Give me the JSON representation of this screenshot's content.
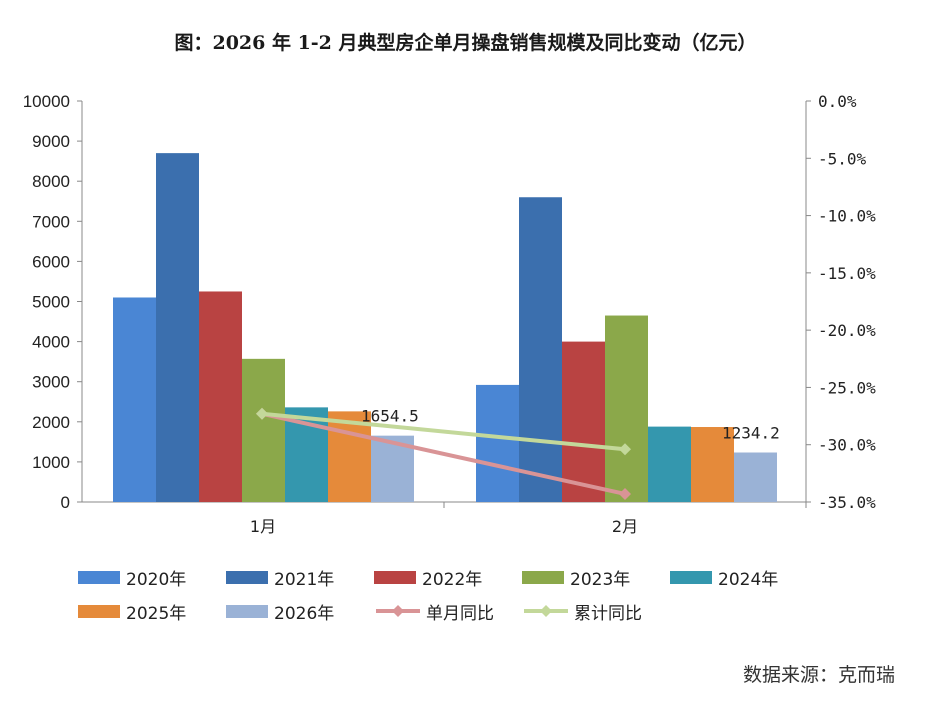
{
  "chart_data": {
    "type": "bar+line",
    "title": "图：2026 年 1-2 月典型房企单月操盘销售规模及同比变动（亿元）",
    "categories": [
      "1月",
      "2月"
    ],
    "y_left": {
      "min": 0,
      "max": 10000,
      "step": 1000,
      "ticks": [
        "0",
        "1000",
        "2000",
        "3000",
        "4000",
        "5000",
        "6000",
        "7000",
        "8000",
        "9000",
        "10000"
      ]
    },
    "y_right": {
      "min": -35,
      "max": 0,
      "step": 5,
      "ticks": [
        "0.0%",
        "-5.0%",
        "-10.0%",
        "-15.0%",
        "-20.0%",
        "-25.0%",
        "-30.0%",
        "-35.0%"
      ]
    },
    "bar_series": [
      {
        "name": "2020年",
        "color": "#4A86D4",
        "values": [
          5100,
          2920
        ]
      },
      {
        "name": "2021年",
        "color": "#3B6FAE",
        "values": [
          8700,
          7600
        ]
      },
      {
        "name": "2022年",
        "color": "#B94342",
        "values": [
          5250,
          4000
        ]
      },
      {
        "name": "2023年",
        "color": "#8BA84A",
        "values": [
          3570,
          4650
        ]
      },
      {
        "name": "2024年",
        "color": "#3497AE",
        "values": [
          2360,
          1880
        ]
      },
      {
        "name": "2025年",
        "color": "#E58A3A",
        "values": [
          2260,
          1870
        ]
      },
      {
        "name": "2026年",
        "color": "#9AB2D6",
        "values": [
          1654.5,
          1234.2
        ]
      }
    ],
    "line_series": [
      {
        "name": "单月同比",
        "color": "#D99496",
        "axis": "right",
        "values": [
          -27.3,
          -34.3
        ]
      },
      {
        "name": "累计同比",
        "color": "#C3D89A",
        "axis": "right",
        "values": [
          -27.3,
          -30.4
        ]
      }
    ],
    "data_labels": [
      "1654.5",
      "1234.2"
    ]
  },
  "legend_rows": [
    [
      {
        "label": "2020年",
        "color": "#4A86D4",
        "kind": "bar"
      },
      {
        "label": "2021年",
        "color": "#3B6FAE",
        "kind": "bar"
      },
      {
        "label": "2022年",
        "color": "#B94342",
        "kind": "bar"
      },
      {
        "label": "2023年",
        "color": "#8BA84A",
        "kind": "bar"
      },
      {
        "label": "2024年",
        "color": "#3497AE",
        "kind": "bar"
      }
    ],
    [
      {
        "label": "2025年",
        "color": "#E58A3A",
        "kind": "bar"
      },
      {
        "label": "2026年",
        "color": "#9AB2D6",
        "kind": "bar"
      },
      {
        "label": "单月同比",
        "color": "#D99496",
        "kind": "line"
      },
      {
        "label": "累计同比",
        "color": "#C3D89A",
        "kind": "line"
      }
    ]
  ],
  "source": "数据来源：克而瑞"
}
